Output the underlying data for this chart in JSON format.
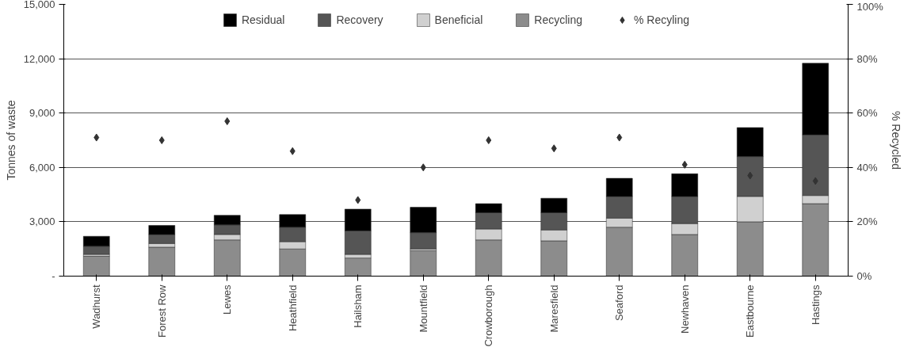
{
  "chart_data": {
    "type": "bar",
    "stacked": true,
    "ylabel": "Tonnes of waste",
    "y2label": "% Recycled",
    "categories": [
      "Wadhurst",
      "Forest Row",
      "Lewes",
      "Heathfield",
      "Hailsham",
      "Mountfield",
      "Crowborough",
      "Maresfield",
      "Seaford",
      "Newhaven",
      "Eastbourne",
      "Hastings"
    ],
    "series": [
      {
        "name": "Recycling",
        "color": "#8c8c8c",
        "values": [
          1100,
          1600,
          2000,
          1500,
          1000,
          1400,
          2000,
          1950,
          2700,
          2300,
          3000,
          4000
        ]
      },
      {
        "name": "Beneficial",
        "color": "#d0d0d0",
        "values": [
          100,
          200,
          300,
          400,
          200,
          100,
          600,
          600,
          500,
          600,
          1400,
          450
        ]
      },
      {
        "name": "Recovery",
        "color": "#555555",
        "values": [
          450,
          500,
          530,
          800,
          1300,
          900,
          900,
          950,
          1200,
          1500,
          2200,
          3350
        ]
      },
      {
        "name": "Residual",
        "color": "#000000",
        "values": [
          550,
          500,
          530,
          700,
          1200,
          1400,
          500,
          800,
          1000,
          1250,
          1600,
          3950
        ]
      },
      {
        "name": "% Recyling",
        "type": "scatter",
        "axis": "y2",
        "marker": "diamond",
        "color": "#333333",
        "values": [
          51,
          50,
          57,
          46,
          28,
          40,
          50,
          47,
          51,
          41,
          37,
          35
        ]
      }
    ],
    "ylim": [
      0,
      15000
    ],
    "yticks": [
      {
        "value": 0,
        "label": "-"
      },
      {
        "value": 3000,
        "label": "3,000"
      },
      {
        "value": 6000,
        "label": "6,000"
      },
      {
        "value": 9000,
        "label": "9,000"
      },
      {
        "value": 12000,
        "label": "12,000"
      },
      {
        "value": 15000,
        "label": "15,000"
      }
    ],
    "y2lim": [
      0,
      100
    ],
    "y2ticks": [
      {
        "value": 0,
        "label": "0%"
      },
      {
        "value": 20,
        "label": "20%"
      },
      {
        "value": 40,
        "label": "40%"
      },
      {
        "value": 60,
        "label": "60%"
      },
      {
        "value": 80,
        "label": "80%"
      },
      {
        "value": 100,
        "label": "100%"
      }
    ],
    "grid": "y",
    "legend": "top"
  }
}
